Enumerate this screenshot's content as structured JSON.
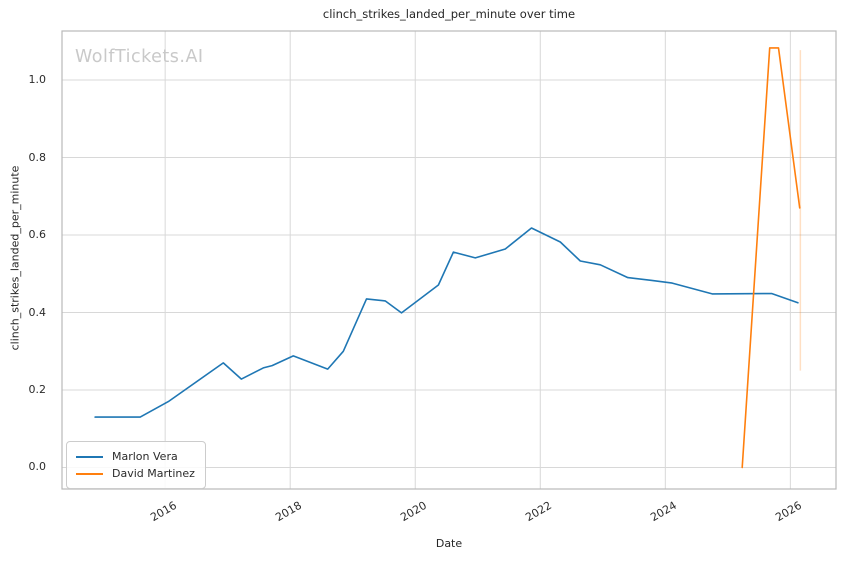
{
  "watermark": "WolfTickets.AI",
  "colors": {
    "grid": "#d8d8d8",
    "spine": "#b9b9b9",
    "background": "#ffffff",
    "text": "#262626",
    "watermark": "#c9c9c9",
    "series_blue": "#1f77b4",
    "series_orange": "#ff7f0e"
  },
  "chart_data": {
    "type": "line",
    "title": "clinch_strikes_landed_per_minute over time",
    "xlabel": "Date",
    "ylabel": "clinch_strikes_landed_per_minute",
    "grid": true,
    "legend_position": "lower left",
    "xlim": [
      2014.35,
      2026.73
    ],
    "ylim": [
      -0.0555,
      1.1265
    ],
    "x_ticks": [
      {
        "value": 2016,
        "label": "2016"
      },
      {
        "value": 2018,
        "label": "2018"
      },
      {
        "value": 2020,
        "label": "2020"
      },
      {
        "value": 2022,
        "label": "2022"
      },
      {
        "value": 2024,
        "label": "2024"
      },
      {
        "value": 2026,
        "label": "2026"
      }
    ],
    "y_ticks": [
      {
        "value": 0.0,
        "label": "0.0"
      },
      {
        "value": 0.2,
        "label": "0.2"
      },
      {
        "value": 0.4,
        "label": "0.4"
      },
      {
        "value": 0.6,
        "label": "0.6"
      },
      {
        "value": 0.8,
        "label": "0.8"
      },
      {
        "value": 1.0,
        "label": "1.0"
      }
    ],
    "series": [
      {
        "name": "Marlon Vera",
        "color": "#1f77b4",
        "points": [
          [
            2014.88,
            0.13
          ],
          [
            2015.6,
            0.13
          ],
          [
            2016.05,
            0.17
          ],
          [
            2016.93,
            0.27
          ],
          [
            2017.22,
            0.228
          ],
          [
            2017.57,
            0.257
          ],
          [
            2017.71,
            0.263
          ],
          [
            2018.05,
            0.288
          ],
          [
            2018.6,
            0.254
          ],
          [
            2018.85,
            0.3
          ],
          [
            2019.22,
            0.435
          ],
          [
            2019.52,
            0.43
          ],
          [
            2019.78,
            0.399
          ],
          [
            2020.37,
            0.471
          ],
          [
            2020.61,
            0.556
          ],
          [
            2020.96,
            0.541
          ],
          [
            2021.44,
            0.564
          ],
          [
            2021.86,
            0.618
          ],
          [
            2022.32,
            0.582
          ],
          [
            2022.64,
            0.533
          ],
          [
            2022.96,
            0.523
          ],
          [
            2023.4,
            0.49
          ],
          [
            2023.77,
            0.483
          ],
          [
            2024.11,
            0.476
          ],
          [
            2024.75,
            0.448
          ],
          [
            2025.7,
            0.449
          ],
          [
            2026.12,
            0.425
          ]
        ]
      },
      {
        "name": "David Martinez",
        "color": "#ff7f0e",
        "points": [
          [
            2025.23,
            0.0
          ],
          [
            2025.67,
            1.083
          ],
          [
            2025.81,
            1.083
          ],
          [
            2026.15,
            0.67
          ]
        ]
      }
    ],
    "event_marker": {
      "x": 2026.16,
      "y_range": [
        0.25,
        1.077
      ],
      "color": "#ff7f0e",
      "opacity": 0.25
    }
  }
}
